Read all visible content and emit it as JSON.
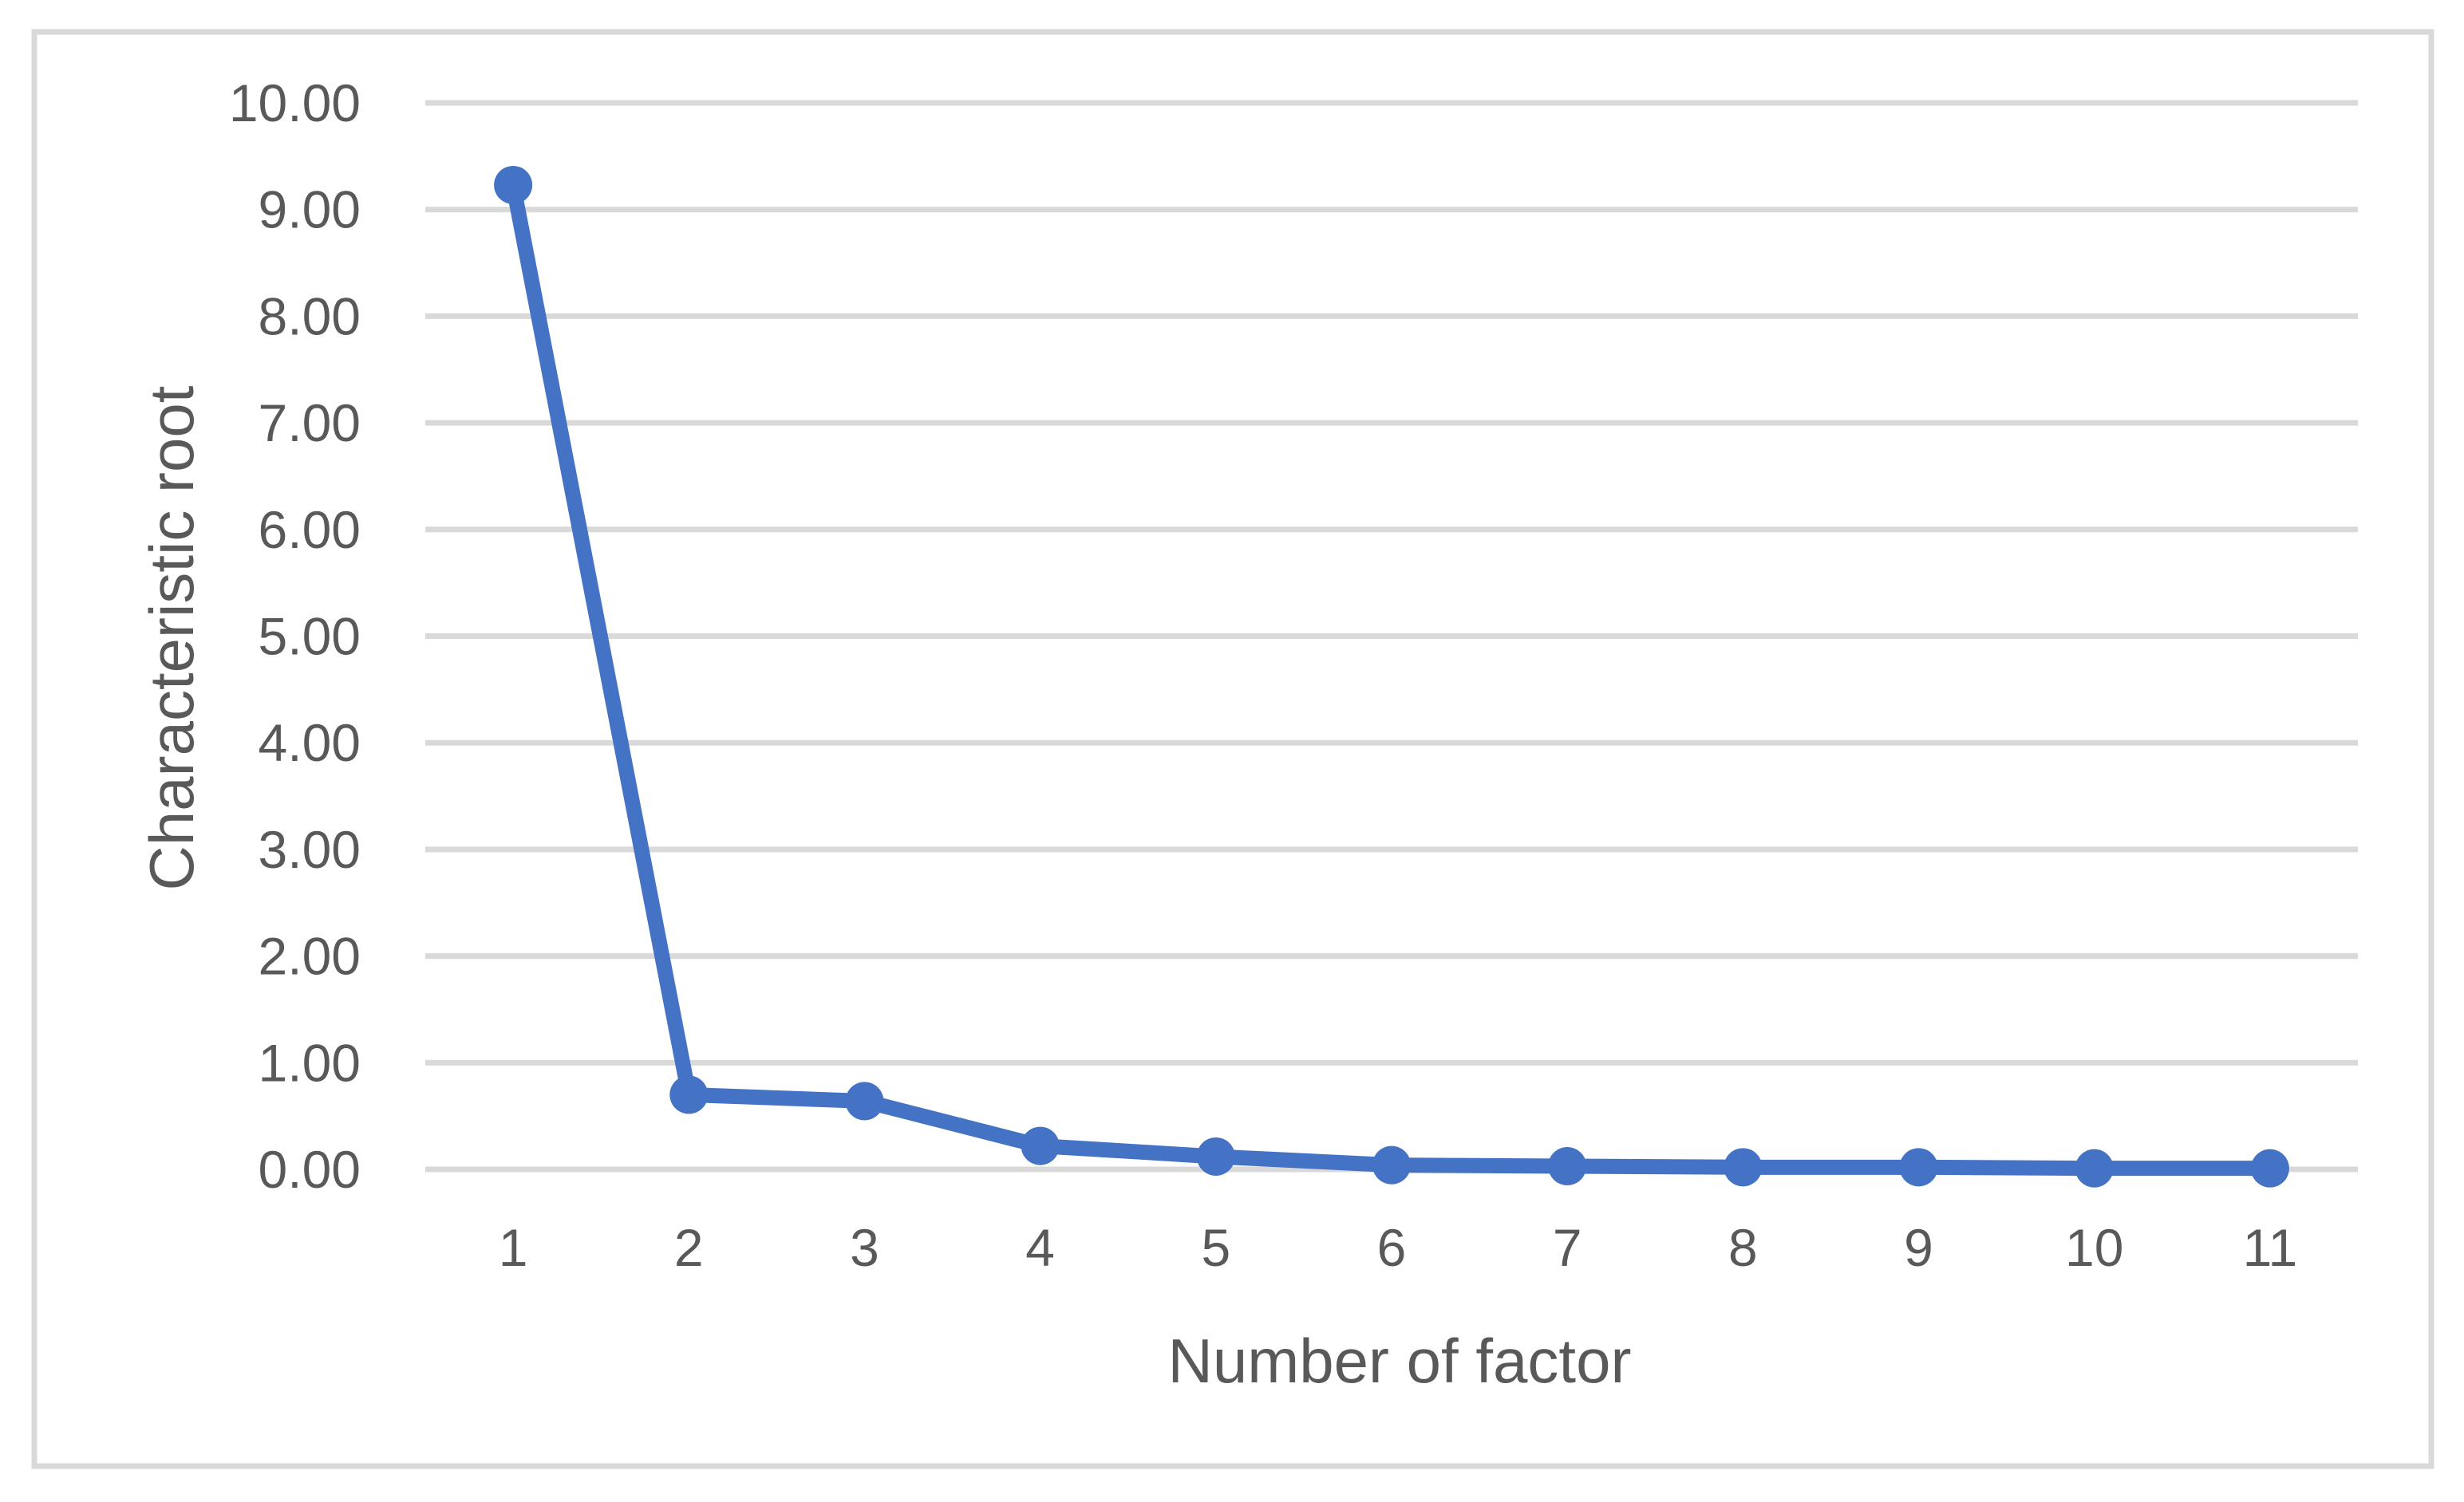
{
  "chart_data": {
    "type": "line",
    "title": "",
    "xlabel": "Number of factor",
    "ylabel": "Characteristic root",
    "categories": [
      "1",
      "2",
      "3",
      "4",
      "5",
      "6",
      "7",
      "8",
      "9",
      "10",
      "11"
    ],
    "series": [
      {
        "name": "Characteristic root",
        "values": [
          9.23,
          0.7,
          0.64,
          0.22,
          0.12,
          0.04,
          0.03,
          0.02,
          0.02,
          0.01,
          0.01
        ]
      }
    ],
    "ylim": [
      0,
      10
    ],
    "ytick_step": 1,
    "ytick_labels": [
      "0.00",
      "1.00",
      "2.00",
      "3.00",
      "4.00",
      "5.00",
      "6.00",
      "7.00",
      "8.00",
      "9.00",
      "10.00"
    ],
    "grid": "horizontal",
    "legend": "none",
    "marker": "circle",
    "colors": {
      "series": "#4472C4",
      "gridline": "#D9D9D9",
      "chart_border": "#D9D9D9",
      "text": "#595959",
      "background": "#FFFFFF"
    }
  }
}
